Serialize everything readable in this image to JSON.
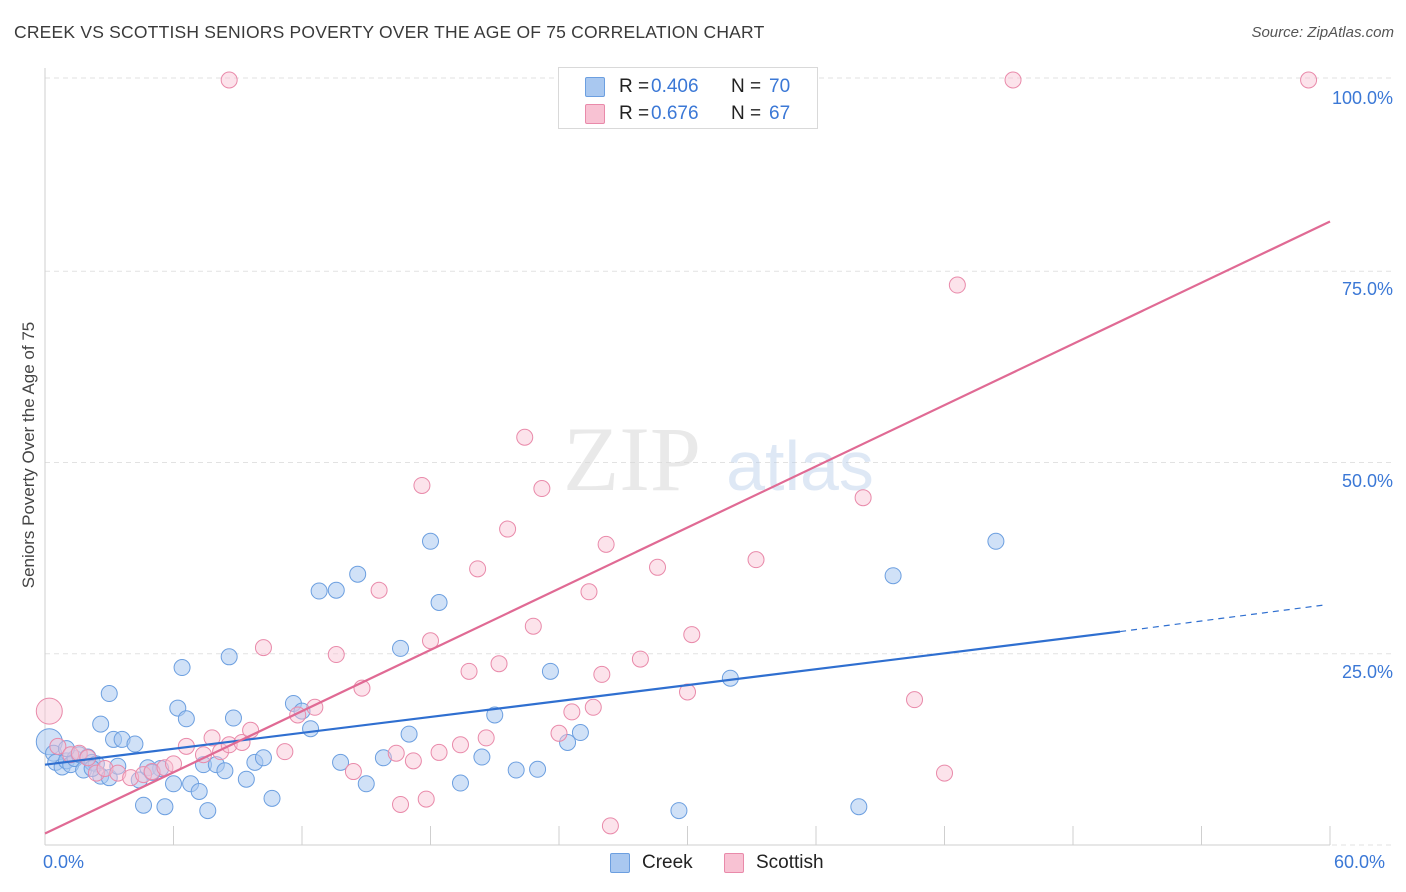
{
  "title": "CREEK VS SCOTTISH SENIORS POVERTY OVER THE AGE OF 75 CORRELATION CHART",
  "source": "Source: ZipAtlas.com",
  "watermark": {
    "zip": "ZIP",
    "atlas": "atlas"
  },
  "legend": {
    "rows": [
      {
        "r_label": "R =",
        "r_value": "0.406",
        "n_label": "N =",
        "n_value": "70",
        "color": "#a9c8f0",
        "border": "#6c9fe0"
      },
      {
        "r_label": "R =",
        "r_value": "0.676",
        "n_label": "N =",
        "n_value": "67",
        "color": "#f8c2d3",
        "border": "#e98aaa"
      }
    ]
  },
  "bottom_legend": [
    {
      "label": "Creek",
      "color": "#a9c8f0",
      "border": "#6c9fe0"
    },
    {
      "label": "Scottish",
      "color": "#f8c2d3",
      "border": "#e98aaa"
    }
  ],
  "chart_data": {
    "type": "scatter",
    "title": "CREEK VS SCOTTISH SENIORS POVERTY OVER THE AGE OF 75 CORRELATION CHART",
    "xlabel": "",
    "ylabel": "Seniors Poverty Over the Age of 75",
    "xlim": [
      0,
      60
    ],
    "ylim": [
      0,
      100
    ],
    "x_tick_labels": [
      "0.0%",
      "60.0%"
    ],
    "y_tick_labels": [
      "100.0%",
      "75.0%",
      "50.0%",
      "25.0%"
    ],
    "y_tick_values": [
      100,
      75,
      50,
      25
    ],
    "grid": true,
    "legend_position": "top-center",
    "colors": {
      "creek_fill": "#a9c8f0",
      "creek_stroke": "#6c9fe0",
      "creek_line": "#2f6fd0",
      "scottish_fill": "#f8c2d3",
      "scottish_stroke": "#e98aaa",
      "scottish_line": "#e06a94"
    },
    "series": [
      {
        "name": "Creek",
        "points": [
          [
            0.2,
            13.5
          ],
          [
            0.4,
            12.0
          ],
          [
            0.5,
            10.8
          ],
          [
            0.8,
            10.2
          ],
          [
            1.0,
            11.0
          ],
          [
            1.2,
            10.5
          ],
          [
            1.4,
            11.3
          ],
          [
            1.6,
            11.8
          ],
          [
            1.8,
            9.8
          ],
          [
            2.0,
            11.5
          ],
          [
            2.2,
            10.8
          ],
          [
            2.4,
            10.6
          ],
          [
            2.6,
            9.0
          ],
          [
            3.0,
            8.8
          ],
          [
            3.4,
            10.3
          ],
          [
            2.6,
            15.8
          ],
          [
            3.2,
            13.8
          ],
          [
            3.6,
            13.8
          ],
          [
            4.2,
            13.2
          ],
          [
            4.4,
            8.5
          ],
          [
            3.0,
            19.8
          ],
          [
            4.6,
            5.2
          ],
          [
            4.8,
            10.1
          ],
          [
            5.6,
            5.0
          ],
          [
            5.4,
            10.0
          ],
          [
            6.2,
            17.9
          ],
          [
            6.0,
            8.0
          ],
          [
            6.4,
            23.2
          ],
          [
            6.8,
            8.0
          ],
          [
            6.6,
            16.5
          ],
          [
            7.2,
            7.0
          ],
          [
            7.4,
            10.5
          ],
          [
            7.6,
            4.5
          ],
          [
            8.0,
            10.5
          ],
          [
            8.4,
            9.7
          ],
          [
            8.6,
            24.6
          ],
          [
            8.8,
            16.6
          ],
          [
            9.4,
            8.6
          ],
          [
            9.8,
            10.8
          ],
          [
            10.2,
            11.4
          ],
          [
            10.6,
            6.1
          ],
          [
            11.6,
            18.5
          ],
          [
            12.0,
            17.5
          ],
          [
            12.4,
            15.2
          ],
          [
            12.8,
            33.2
          ],
          [
            13.6,
            33.3
          ],
          [
            13.8,
            10.8
          ],
          [
            14.6,
            35.4
          ],
          [
            15.0,
            8.0
          ],
          [
            15.8,
            11.4
          ],
          [
            16.6,
            25.7
          ],
          [
            17.0,
            14.5
          ],
          [
            18.0,
            39.7
          ],
          [
            18.4,
            31.7
          ],
          [
            19.4,
            8.1
          ],
          [
            20.4,
            11.5
          ],
          [
            21.0,
            17.0
          ],
          [
            22.0,
            9.8
          ],
          [
            23.0,
            9.9
          ],
          [
            23.6,
            22.7
          ],
          [
            24.4,
            13.4
          ],
          [
            25.0,
            14.7
          ],
          [
            29.6,
            4.5
          ],
          [
            32.0,
            21.8
          ],
          [
            38.0,
            5.0
          ],
          [
            39.6,
            35.2
          ],
          [
            44.4,
            39.7
          ],
          [
            1.0,
            12.6
          ],
          [
            5.0,
            9.5
          ],
          [
            2.2,
            10.0
          ]
        ]
      },
      {
        "name": "Scottish",
        "points": [
          [
            0.2,
            17.5
          ],
          [
            0.6,
            12.9
          ],
          [
            1.2,
            11.8
          ],
          [
            1.6,
            12.0
          ],
          [
            2.0,
            11.4
          ],
          [
            2.4,
            9.4
          ],
          [
            2.8,
            10.0
          ],
          [
            3.4,
            9.4
          ],
          [
            4.0,
            8.8
          ],
          [
            4.6,
            9.2
          ],
          [
            5.0,
            9.6
          ],
          [
            5.6,
            10.1
          ],
          [
            6.0,
            10.6
          ],
          [
            6.6,
            12.9
          ],
          [
            7.4,
            11.8
          ],
          [
            7.8,
            14.0
          ],
          [
            8.2,
            12.2
          ],
          [
            8.6,
            13.1
          ],
          [
            9.2,
            13.4
          ],
          [
            9.6,
            15.0
          ],
          [
            10.2,
            25.8
          ],
          [
            11.2,
            12.2
          ],
          [
            11.8,
            17.0
          ],
          [
            12.6,
            18.0
          ],
          [
            13.6,
            24.9
          ],
          [
            14.4,
            9.6
          ],
          [
            14.8,
            20.5
          ],
          [
            15.6,
            33.3
          ],
          [
            16.4,
            12.0
          ],
          [
            16.6,
            5.3
          ],
          [
            17.2,
            11.0
          ],
          [
            17.8,
            6.0
          ],
          [
            18.0,
            26.7
          ],
          [
            17.6,
            47.0
          ],
          [
            18.4,
            12.1
          ],
          [
            19.4,
            13.1
          ],
          [
            19.8,
            22.7
          ],
          [
            20.2,
            36.1
          ],
          [
            20.6,
            14.0
          ],
          [
            21.2,
            23.7
          ],
          [
            21.6,
            41.3
          ],
          [
            22.4,
            53.3
          ],
          [
            22.8,
            28.6
          ],
          [
            23.2,
            46.6
          ],
          [
            24.0,
            14.6
          ],
          [
            24.6,
            17.4
          ],
          [
            25.4,
            33.1
          ],
          [
            25.6,
            18.0
          ],
          [
            26.0,
            22.3
          ],
          [
            26.2,
            39.3
          ],
          [
            26.4,
            2.5
          ],
          [
            27.8,
            24.3
          ],
          [
            28.6,
            36.3
          ],
          [
            30.0,
            20.0
          ],
          [
            30.2,
            27.5
          ],
          [
            33.2,
            37.3
          ],
          [
            34.8,
            100.0
          ],
          [
            38.2,
            45.4
          ],
          [
            40.6,
            19.0
          ],
          [
            42.0,
            9.4
          ],
          [
            42.6,
            73.2
          ],
          [
            45.2,
            100.0
          ],
          [
            59.0,
            100.0
          ],
          [
            29.4,
            100.0
          ],
          [
            34.0,
            100.0
          ],
          [
            8.6,
            100.0
          ],
          [
            27.6,
            100.0
          ]
        ]
      }
    ],
    "trendlines": [
      {
        "name": "Creek",
        "x_start": 0,
        "y_start": 10.5,
        "x_end": 50.2,
        "y_end": 27.9,
        "dashed_to_x": 59.8,
        "dashed_to_y": 31.4
      },
      {
        "name": "Scottish",
        "x_start": 0,
        "y_start": 1.5,
        "x_end": 60.0,
        "y_end": 81.5
      }
    ]
  }
}
